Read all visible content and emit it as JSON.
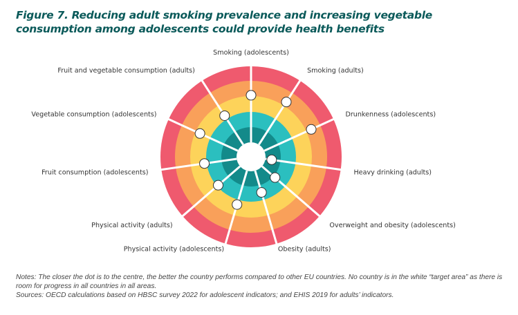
{
  "chart_data": {
    "type": "radial-target",
    "title": "Figure 7. Reducing adult smoking prevalence and increasing vegetable consumption among adolescents could provide health benefits",
    "rings": [
      {
        "name": "target area",
        "color": "#ffffff"
      },
      {
        "name": "ring1",
        "color": "#138a8a"
      },
      {
        "name": "ring2",
        "color": "#2bbfbf"
      },
      {
        "name": "ring3",
        "color": "#fdd35a"
      },
      {
        "name": "ring4",
        "color": "#f9a05a"
      },
      {
        "name": "ring5",
        "color": "#ef5a6e"
      }
    ],
    "scale_note": "value = distance of dot from centre as fraction of outer radius (0 = centre, 1 = outer edge)",
    "axes": [
      {
        "label": "Smoking (adolescents)",
        "value": 0.68
      },
      {
        "label": "Smoking (adults)",
        "value": 0.72
      },
      {
        "label": "Drunkenness (adolescents)",
        "value": 0.73
      },
      {
        "label": "Heavy drinking (adults)",
        "value": 0.23
      },
      {
        "label": "Overweight and obesity (adolescents)",
        "value": 0.35
      },
      {
        "label": "Obesity (adults)",
        "value": 0.41
      },
      {
        "label": "Physical activity (adolescents)",
        "value": 0.55
      },
      {
        "label": "Physical activity (adults)",
        "value": 0.48
      },
      {
        "label": "Fruit consumption (adolescents)",
        "value": 0.52
      },
      {
        "label": "Vegetable consumption (adolescents)",
        "value": 0.62
      },
      {
        "label": "Fruit and vegetable consumption (adults)",
        "value": 0.54
      }
    ]
  },
  "notes": "Notes: The closer the dot is to the centre, the better the country performs compared to other EU countries. No country is in the white “target area” as there is room for progress in all countries in all areas.",
  "sources": "Sources: OECD calculations based on HBSC survey 2022 for adolescent indicators; and EHIS 2019 for adults’ indicators."
}
